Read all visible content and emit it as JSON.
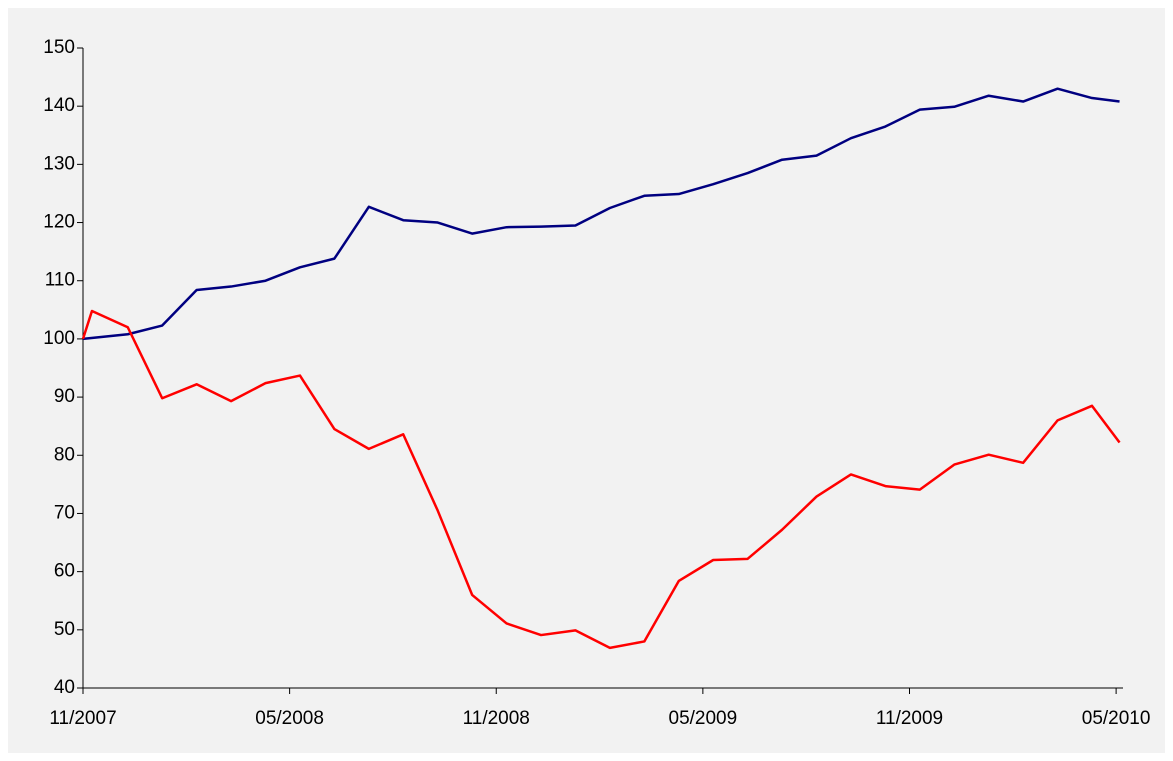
{
  "chart_data": {
    "type": "line",
    "xlim": [
      0,
      30.2
    ],
    "xticks": [
      {
        "value": 0,
        "label": "11/2007"
      },
      {
        "value": 6,
        "label": "05/2008"
      },
      {
        "value": 12,
        "label": "11/2008"
      },
      {
        "value": 18,
        "label": "05/2009"
      },
      {
        "value": 24,
        "label": "11/2009"
      },
      {
        "value": 30,
        "label": "05/2010"
      }
    ],
    "ylim": [
      40,
      150
    ],
    "yticks": [
      40,
      50,
      60,
      70,
      80,
      90,
      100,
      110,
      120,
      130,
      140,
      150
    ],
    "series": [
      {
        "color": "#000080",
        "x": [
          0,
          1.3,
          2.3,
          3.3,
          4.3,
          5.3,
          6.3,
          7.3,
          8.3,
          9.3,
          10.3,
          11.3,
          12.3,
          13.3,
          14.3,
          15.3,
          16.3,
          17.3,
          18.3,
          19.3,
          20.3,
          21.3,
          22.3,
          23.3,
          24.3,
          25.3,
          26.3,
          27.3,
          28.3,
          29.3,
          30.1
        ],
        "values": [
          100,
          100.8,
          102.3,
          108.4,
          109,
          110,
          112.3,
          113.8,
          122.7,
          120.4,
          120,
          118.1,
          119.2,
          119.3,
          119.5,
          122.5,
          124.6,
          124.9,
          126.6,
          128.5,
          130.8,
          131.5,
          134.5,
          136.5,
          139.4,
          139.9,
          141.8,
          140.8,
          143,
          141.4,
          140.8
        ]
      },
      {
        "color": "#ff0000",
        "x": [
          0,
          0.26,
          1.3,
          2.3,
          3.3,
          4.3,
          5.3,
          6.3,
          7.3,
          8.3,
          9.3,
          10.3,
          11.3,
          12.3,
          13.3,
          14.3,
          15.3,
          16.3,
          17.3,
          18.3,
          19.3,
          20.3,
          21.3,
          22.3,
          23.3,
          24.3,
          25.3,
          26.3,
          27.3,
          28.3,
          29.3,
          30.1
        ],
        "values": [
          100,
          104.8,
          102,
          89.8,
          92.2,
          89.3,
          92.4,
          93.7,
          84.5,
          81.1,
          83.6,
          70.5,
          56,
          51.1,
          49.1,
          49.9,
          46.9,
          48,
          58.4,
          62,
          62.2,
          67.2,
          72.9,
          76.7,
          74.7,
          74.1,
          78.4,
          80.1,
          78.7,
          86,
          88.5,
          82.2
        ]
      }
    ]
  }
}
